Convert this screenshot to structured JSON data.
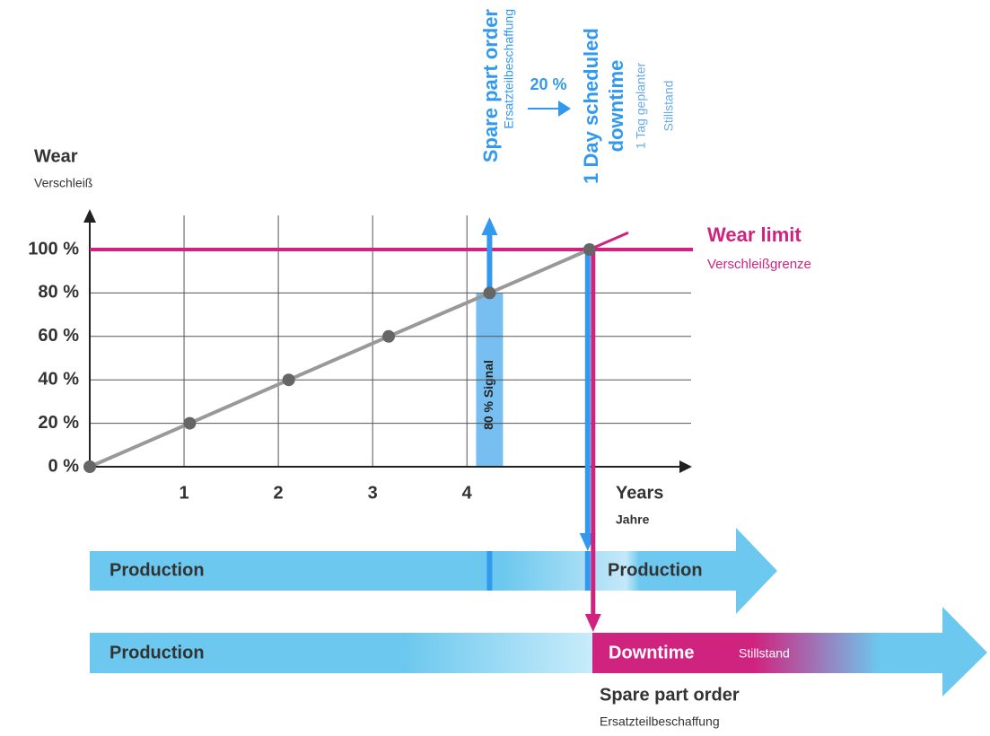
{
  "chart_data": {
    "type": "line",
    "y_label": "Wear",
    "y_sublabel": "Verschleiß",
    "x_label": "Years",
    "x_sublabel": "Jahre",
    "x": [
      0,
      1.06,
      2.11,
      3.17,
      4.24,
      5.3
    ],
    "values": [
      0,
      20,
      40,
      60,
      80,
      100
    ],
    "color": "#999999",
    "xlim": [
      0,
      6.33
    ],
    "ylim": [
      0,
      100
    ],
    "xticks": [
      1,
      2,
      3,
      4
    ],
    "yticks": [
      {
        "value": 0,
        "label": "0 %"
      },
      {
        "value": 20,
        "label": "20 %"
      },
      {
        "value": 40,
        "label": "40 %"
      },
      {
        "value": 60,
        "label": "60 %"
      },
      {
        "value": 80,
        "label": "80 %"
      },
      {
        "value": 100,
        "label": "100 %"
      }
    ],
    "grid": true,
    "wear_limit": {
      "label": "Wear limit",
      "sublabel": "Verschleißgrenze",
      "value": 100,
      "color": "#d0237f"
    },
    "signal_label": "80 % Signal"
  },
  "annotations": {
    "spare_part_order": {
      "title": "Spare part order",
      "subtitle": "Ersatzteilbeschaffung"
    },
    "lead": "20 %",
    "downtime": {
      "title": [
        "1 Day scheduled",
        "downtime"
      ],
      "subtitle": [
        "1 Tag geplanter",
        "Stillstand"
      ]
    }
  },
  "timelines": [
    {
      "start": "Production",
      "end": "Production"
    },
    {
      "start": "Production",
      "downtime": "Downtime",
      "downtime_sub": "Stillstand",
      "order": "Spare part order",
      "order_sub": "Ersatzteilbeschaffung"
    }
  ]
}
